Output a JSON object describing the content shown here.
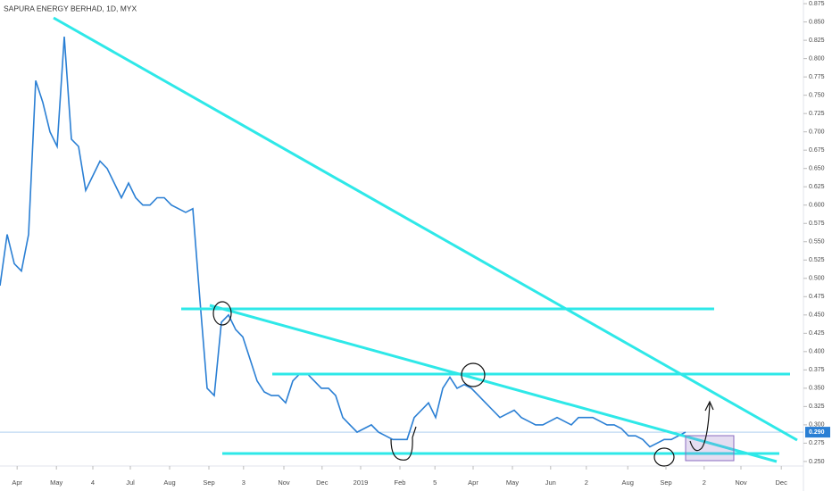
{
  "chart_data": {
    "type": "line",
    "title": "SAPURA ENERGY BERHAD, 1D, MYX",
    "series": [
      {
        "color": "#2a7fd4",
        "values": [
          0.49,
          0.56,
          0.52,
          0.51,
          0.56,
          0.77,
          0.74,
          0.7,
          0.68,
          0.83,
          0.69,
          0.68,
          0.62,
          0.64,
          0.66,
          0.65,
          0.63,
          0.61,
          0.63,
          0.61,
          0.6,
          0.6,
          0.61,
          0.61,
          0.6,
          0.595,
          0.59,
          0.595,
          0.47,
          0.35,
          0.34,
          0.44,
          0.45,
          0.43,
          0.42,
          0.39,
          0.36,
          0.345,
          0.34,
          0.34,
          0.33,
          0.36,
          0.37,
          0.37,
          0.36,
          0.35,
          0.35,
          0.34,
          0.31,
          0.3,
          0.29,
          0.295,
          0.3,
          0.29,
          0.285,
          0.28,
          0.28,
          0.28,
          0.31,
          0.32,
          0.33,
          0.31,
          0.35,
          0.365,
          0.35,
          0.355,
          0.35,
          0.34,
          0.33,
          0.32,
          0.31,
          0.315,
          0.32,
          0.31,
          0.305,
          0.3,
          0.3,
          0.305,
          0.31,
          0.305,
          0.3,
          0.31,
          0.31,
          0.31,
          0.305,
          0.3,
          0.3,
          0.295,
          0.285,
          0.285,
          0.28,
          0.27,
          0.275,
          0.28,
          0.28,
          0.285,
          0.29
        ]
      }
    ],
    "xlim": [
      0,
      112.5
    ],
    "xticks": [
      {
        "value": 2.4,
        "label": "Apr"
      },
      {
        "value": 7.9,
        "label": "May"
      },
      {
        "value": 13,
        "label": "4"
      },
      {
        "value": 18.25,
        "label": "Jul"
      },
      {
        "value": 23.75,
        "label": "Aug"
      },
      {
        "value": 29.25,
        "label": "Sep"
      },
      {
        "value": 34.1,
        "label": "3"
      },
      {
        "value": 39.75,
        "label": "Nov"
      },
      {
        "value": 45.1,
        "label": "Dec"
      },
      {
        "value": 50.5,
        "label": "2019"
      },
      {
        "value": 56,
        "label": "Feb"
      },
      {
        "value": 60.9,
        "label": "5"
      },
      {
        "value": 66.25,
        "label": "Apr"
      },
      {
        "value": 71.75,
        "label": "May"
      },
      {
        "value": 77.1,
        "label": "Jun"
      },
      {
        "value": 82.1,
        "label": "2"
      },
      {
        "value": 87.9,
        "label": "Aug"
      },
      {
        "value": 93.25,
        "label": "Sep"
      },
      {
        "value": 98.6,
        "label": "2"
      },
      {
        "value": 103.75,
        "label": "Nov"
      },
      {
        "value": 109.4,
        "label": "Dec"
      }
    ],
    "ylim": [
      0.2438,
      0.88
    ],
    "yticks": [
      0.875,
      {
        "value": 0.85,
        "label": "0.850"
      },
      0.825,
      {
        "value": 0.8,
        "label": "0.800"
      },
      0.775,
      {
        "value": 0.75,
        "label": "0.750"
      },
      0.725,
      {
        "value": 0.7,
        "label": "0.700"
      },
      0.675,
      {
        "value": 0.65,
        "label": "0.650"
      },
      0.625,
      {
        "value": 0.6,
        "label": "0.600"
      },
      0.575,
      {
        "value": 0.55,
        "label": "0.550"
      },
      0.525,
      {
        "value": 0.5,
        "label": "0.500"
      },
      0.475,
      {
        "value": 0.45,
        "label": "0.450"
      },
      0.425,
      {
        "value": 0.4,
        "label": "0.400"
      },
      0.375,
      {
        "value": 0.35,
        "label": "0.350"
      },
      0.325,
      {
        "value": 0.3,
        "label": "0.300"
      },
      0.275,
      {
        "value": 0.25,
        "label": "0.250"
      }
    ],
    "last_price": {
      "value": 0.29,
      "label": "0.290"
    }
  }
}
